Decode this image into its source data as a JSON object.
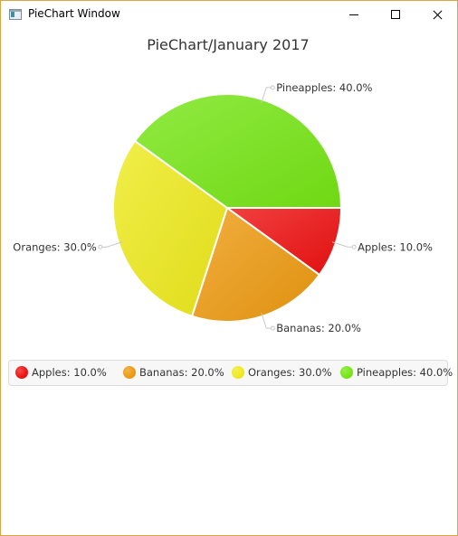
{
  "window": {
    "title": "PieChart Window",
    "icon": "app-window-icon"
  },
  "chart_data": {
    "type": "pie",
    "title": "PieChart/January 2017",
    "slices": [
      {
        "label": "Apples",
        "value": 10.0,
        "text": "Apples: 10.0%",
        "color": "#ee1010"
      },
      {
        "label": "Bananas",
        "value": 20.0,
        "text": "Bananas: 20.0%",
        "color": "#ed9a10"
      },
      {
        "label": "Oranges",
        "value": 30.0,
        "text": "Oranges: 30.0%",
        "color": "#eeea1c"
      },
      {
        "label": "Pineapples",
        "value": 40.0,
        "text": "Pineapples: 40.0%",
        "color": "#76e614"
      }
    ],
    "legend": {
      "position": "bottom",
      "entries": [
        "Apples: 10.0%",
        "Bananas: 20.0%",
        "Oranges: 30.0%",
        "Pineapples: 40.0%"
      ]
    }
  }
}
